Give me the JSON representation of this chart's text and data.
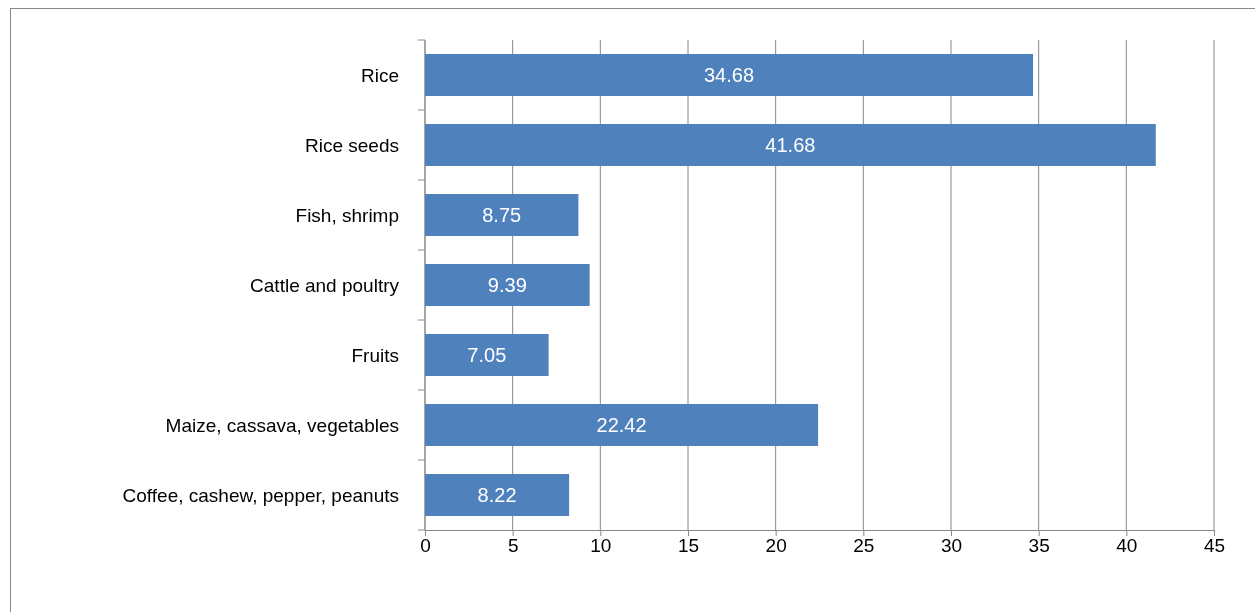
{
  "chart_data": {
    "type": "bar",
    "orientation": "horizontal",
    "categories": [
      "Rice",
      "Rice seeds",
      "Fish, shrimp",
      "Cattle and poultry",
      "Fruits",
      "Maize, cassava, vegetables",
      "Coffee, cashew, pepper, peanuts"
    ],
    "values": [
      34.68,
      41.68,
      8.75,
      9.39,
      7.05,
      22.42,
      8.22
    ],
    "color": "#4f81bd",
    "xlim": [
      0,
      45
    ],
    "xticks": [
      0,
      5,
      10,
      15,
      20,
      25,
      30,
      35,
      40,
      45
    ],
    "grid": "x",
    "data_labels": true
  }
}
